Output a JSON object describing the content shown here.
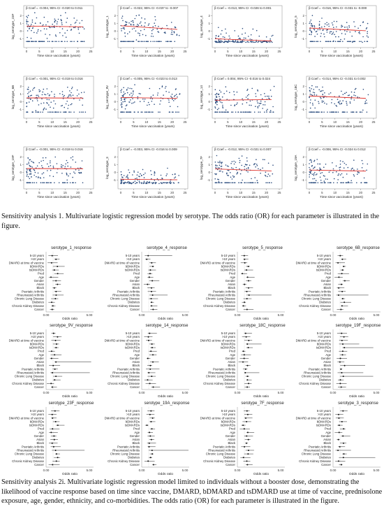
{
  "scatter_panels": [
    {
      "ylabel": "log_serotype_23F",
      "annotation": "β Coef = -0.004, 95% CI -0.020 to 0.011",
      "slope": -0.004,
      "intercept": 0.65
    },
    {
      "ylabel": "log_serotype_1",
      "annotation": "β Coef = -0.022, 95% CI -0.037 to -0.007",
      "slope": -0.022,
      "intercept": 0.7
    },
    {
      "ylabel": "log_serotype_4",
      "annotation": "β Coef = -0.013, 95% CI -0.026 to 0.001",
      "slope": -0.013,
      "intercept": -1.0
    },
    {
      "ylabel": "log_serotype_5",
      "annotation": "β Coef = -0.016, 95% CI -0.031 to -0.000",
      "slope": -0.016,
      "intercept": 0.4
    },
    {
      "ylabel": "log_serotype_6B",
      "annotation": "β Coef = -0.001, 95% CI -0.019 to 0.016",
      "slope": -0.001,
      "intercept": 0.5
    },
    {
      "ylabel": "log_serotype_9V",
      "annotation": "β Coef = -0.005, 95% CI -0.023 to 0.013",
      "slope": -0.005,
      "intercept": 0.55
    },
    {
      "ylabel": "log_serotype_14",
      "annotation": "β Coef = 0.004, 95% CI -0.016 to 0.024",
      "slope": 0.004,
      "intercept": 0.2
    },
    {
      "ylabel": "log_serotype_18C",
      "annotation": "β Coef = -0.014, 95% CI -0.031 to 0.002",
      "slope": -0.014,
      "intercept": 0.75
    },
    {
      "ylabel": "log_serotype_19F",
      "annotation": "β Coef = -0.001, 95% CI -0.019 to 0.016",
      "slope": -0.001,
      "intercept": 0.5
    },
    {
      "ylabel": "log_serotype_3",
      "annotation": "β Coef = -0.003, 95% CI -0.016 to 0.009",
      "slope": -0.003,
      "intercept": -0.9
    },
    {
      "ylabel": "log_serotype_7F",
      "annotation": "β Coef = -0.012, 95% CI -0.021 to 0.007",
      "slope": -0.012,
      "intercept": 0.45
    },
    {
      "ylabel": "log_serotype_19A",
      "annotation": "β Coef = -0.006, 95% CI -0.024 to 0.012",
      "slope": -0.006,
      "intercept": 0.3
    }
  ],
  "scatter_axes": {
    "xlabel": "Time since vaccination (years)",
    "xticks": [
      0,
      5,
      10,
      15,
      20,
      25
    ],
    "yticks": [
      -1,
      0,
      1,
      2
    ],
    "xlim": [
      0,
      25
    ],
    "ylim": [
      -1.6,
      2.6
    ]
  },
  "forest_panels": [
    {
      "title": "serotype_1_response"
    },
    {
      "title": "serotype_4_response"
    },
    {
      "title": "serotype_5_response"
    },
    {
      "title": "serotype_6B_response"
    },
    {
      "title": "serotype_9V_response"
    },
    {
      "title": "serotype_14_response"
    },
    {
      "title": "serotype_18C_response"
    },
    {
      "title": "serotype_19F_response"
    },
    {
      "title": "serotype_23F_response"
    },
    {
      "title": "serotype_19A_response"
    },
    {
      "title": "serotype_7F_response"
    },
    {
      "title": "serotype_3_response"
    }
  ],
  "forest_axes": {
    "labels": [
      "5-10 years",
      ">10 years",
      "DMARD at time of vaccine",
      "bDMARDs",
      "tsDMARDs",
      "Pred",
      "Age",
      "Gender",
      "Asian",
      "Black",
      "Psoriatic Arthritis",
      "Rheumatoid Arthritis",
      "Chronic Lung Disease",
      "Diabetes",
      "Chronic Kidney Disease",
      "Cancer"
    ],
    "xlabel": "Odds ratio",
    "xticks": [
      "0.00",
      "5.00"
    ]
  },
  "captions": {
    "fig1": "Sensitivity analysis 1. Multivariate logistic regression model by serotype. The odds ratio (OR) for each parameter is illustrated in the figure.",
    "fig2": "Sensitivity analysis 2i. Multivariate logistic regression model limited to individuals without a booster dose, demonstrating the likelihood of vaccine response based on time since vaccine, DMARD, bDMARD and tsDMARD use at time of vaccine, prednisolone exposure, age, gender, ethnicity, and co-morbidities. The odds ratio (OR) for each parameter is illustrated in the figure."
  },
  "colors": {
    "points": "#2b4c7e",
    "fit": "#e0302a",
    "text": "#222"
  }
}
